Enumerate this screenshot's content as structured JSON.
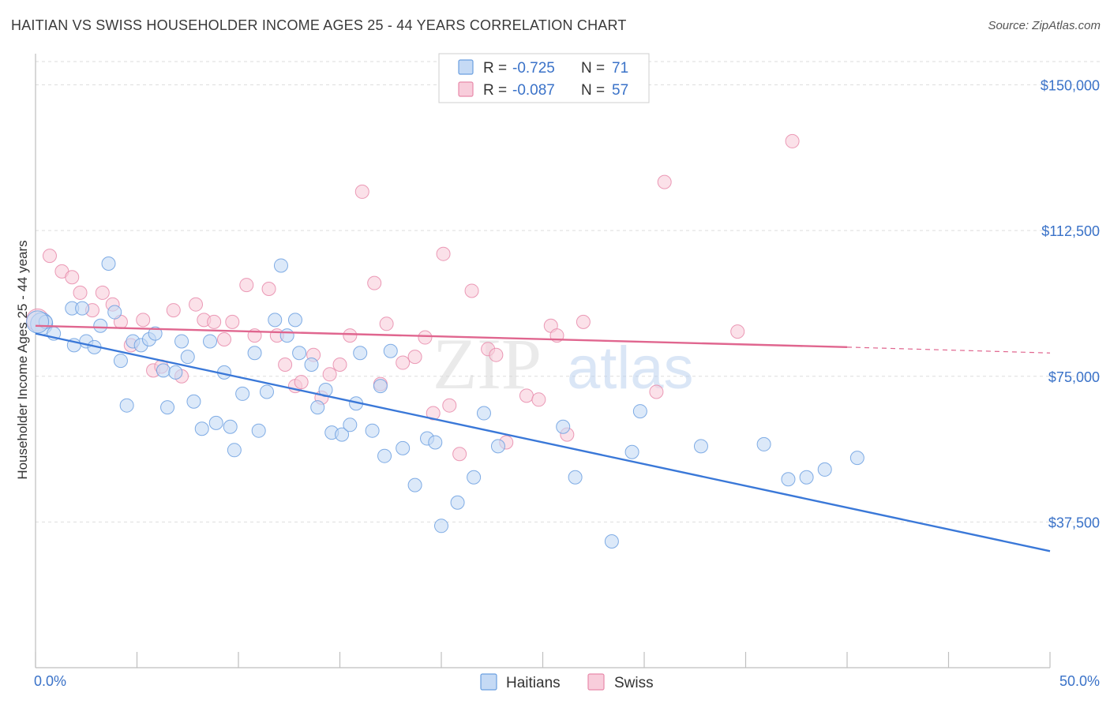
{
  "title": "HAITIAN VS SWISS HOUSEHOLDER INCOME AGES 25 - 44 YEARS CORRELATION CHART",
  "source": "Source: ZipAtlas.com",
  "watermark": {
    "zip": "ZIP",
    "atlas": "atlas"
  },
  "legend": {
    "r_label": "R =",
    "n_label": "N =",
    "series": [
      {
        "name": "Haitians",
        "r": "-0.725",
        "n": "71",
        "color": "#6b9fe0",
        "fill": "#c5daf5"
      },
      {
        "name": "Swiss",
        "r": "-0.087",
        "n": "57",
        "color": "#e88aaa",
        "fill": "#f8cddb"
      }
    ]
  },
  "chart_data": {
    "type": "scatter",
    "title": "HAITIAN VS SWISS HOUSEHOLDER INCOME AGES 25 - 44 YEARS CORRELATION CHART",
    "xlabel": "",
    "ylabel": "Householder Income Ages 25 - 44 years",
    "xlim": [
      0,
      50
    ],
    "ylim": [
      0,
      156000
    ],
    "x_tick_labels": [
      "0.0%",
      "50.0%"
    ],
    "y_ticks": [
      37500,
      75000,
      112500,
      150000
    ],
    "y_tick_labels": [
      "$37,500",
      "$75,000",
      "$112,500",
      "$150,000"
    ],
    "series": [
      {
        "name": "Haitians",
        "color": "#3a78d8",
        "trend": {
          "x": [
            0,
            50
          ],
          "y": [
            86000,
            30000
          ]
        },
        "points": [
          [
            0.3,
            88500
          ],
          [
            0.5,
            89000
          ],
          [
            0.9,
            86000
          ],
          [
            1.8,
            92500
          ],
          [
            2.3,
            92500
          ],
          [
            1.9,
            83000
          ],
          [
            2.5,
            84000
          ],
          [
            2.9,
            82500
          ],
          [
            3.2,
            88000
          ],
          [
            3.6,
            104000
          ],
          [
            3.9,
            91500
          ],
          [
            4.2,
            79000
          ],
          [
            4.5,
            67500
          ],
          [
            4.8,
            84000
          ],
          [
            5.2,
            83000
          ],
          [
            5.6,
            84500
          ],
          [
            5.9,
            86000
          ],
          [
            6.3,
            76500
          ],
          [
            6.5,
            67000
          ],
          [
            6.9,
            76000
          ],
          [
            7.2,
            84000
          ],
          [
            7.5,
            80000
          ],
          [
            7.8,
            68500
          ],
          [
            8.2,
            61500
          ],
          [
            8.6,
            84000
          ],
          [
            8.9,
            63000
          ],
          [
            9.3,
            76000
          ],
          [
            9.6,
            62000
          ],
          [
            9.8,
            56000
          ],
          [
            10.2,
            70500
          ],
          [
            10.8,
            81000
          ],
          [
            11.0,
            61000
          ],
          [
            11.4,
            71000
          ],
          [
            11.8,
            89500
          ],
          [
            12.1,
            103500
          ],
          [
            12.4,
            85500
          ],
          [
            12.8,
            89500
          ],
          [
            13.0,
            81000
          ],
          [
            13.6,
            78000
          ],
          [
            13.9,
            67000
          ],
          [
            14.3,
            71500
          ],
          [
            14.6,
            60500
          ],
          [
            15.1,
            60000
          ],
          [
            15.5,
            62500
          ],
          [
            15.8,
            68000
          ],
          [
            16.0,
            81000
          ],
          [
            16.6,
            61000
          ],
          [
            17.0,
            72500
          ],
          [
            17.2,
            54500
          ],
          [
            17.5,
            81500
          ],
          [
            18.1,
            56500
          ],
          [
            18.7,
            47000
          ],
          [
            19.3,
            59000
          ],
          [
            19.7,
            58000
          ],
          [
            20.0,
            36500
          ],
          [
            20.8,
            42500
          ],
          [
            21.6,
            49000
          ],
          [
            22.1,
            65500
          ],
          [
            22.8,
            57000
          ],
          [
            26.0,
            62000
          ],
          [
            26.6,
            49000
          ],
          [
            28.4,
            32500
          ],
          [
            29.4,
            55500
          ],
          [
            29.8,
            66000
          ],
          [
            32.8,
            57000
          ],
          [
            35.9,
            57500
          ],
          [
            37.1,
            48500
          ],
          [
            38.0,
            49000
          ],
          [
            38.9,
            51000
          ],
          [
            40.5,
            54000
          ],
          [
            0.1,
            89000
          ]
        ]
      },
      {
        "name": "Swiss",
        "color": "#e0668f",
        "trend": {
          "x": [
            0,
            40
          ],
          "y": [
            88000,
            82500
          ]
        },
        "trend_dashed": {
          "x": [
            40,
            50
          ],
          "y": [
            82500,
            81000
          ]
        },
        "points": [
          [
            0.1,
            89500
          ],
          [
            0.7,
            106000
          ],
          [
            1.3,
            102000
          ],
          [
            1.8,
            100500
          ],
          [
            2.2,
            96500
          ],
          [
            2.8,
            92000
          ],
          [
            3.3,
            96500
          ],
          [
            3.8,
            93500
          ],
          [
            4.2,
            89000
          ],
          [
            4.7,
            83000
          ],
          [
            5.3,
            89500
          ],
          [
            5.8,
            76500
          ],
          [
            6.2,
            77500
          ],
          [
            6.8,
            92000
          ],
          [
            7.2,
            75000
          ],
          [
            7.9,
            93500
          ],
          [
            8.3,
            89500
          ],
          [
            8.8,
            89000
          ],
          [
            9.3,
            84500
          ],
          [
            9.7,
            89000
          ],
          [
            10.4,
            98500
          ],
          [
            10.8,
            85500
          ],
          [
            11.5,
            97500
          ],
          [
            11.9,
            85500
          ],
          [
            12.3,
            78000
          ],
          [
            12.8,
            72500
          ],
          [
            13.1,
            73500
          ],
          [
            13.7,
            80500
          ],
          [
            14.1,
            69500
          ],
          [
            14.5,
            75500
          ],
          [
            15.0,
            78000
          ],
          [
            15.5,
            85500
          ],
          [
            16.1,
            122500
          ],
          [
            16.7,
            99000
          ],
          [
            17.0,
            73000
          ],
          [
            17.3,
            88500
          ],
          [
            18.1,
            78500
          ],
          [
            18.7,
            80000
          ],
          [
            19.2,
            85000
          ],
          [
            19.6,
            65500
          ],
          [
            20.1,
            106500
          ],
          [
            20.4,
            67500
          ],
          [
            20.9,
            55000
          ],
          [
            21.5,
            97000
          ],
          [
            22.3,
            82000
          ],
          [
            22.7,
            80500
          ],
          [
            23.2,
            58000
          ],
          [
            24.2,
            70000
          ],
          [
            24.8,
            69000
          ],
          [
            25.4,
            88000
          ],
          [
            25.7,
            85500
          ],
          [
            26.2,
            60000
          ],
          [
            27.0,
            89000
          ],
          [
            30.6,
            71000
          ],
          [
            31.0,
            125000
          ],
          [
            34.6,
            86500
          ],
          [
            37.3,
            135500
          ]
        ]
      }
    ]
  }
}
